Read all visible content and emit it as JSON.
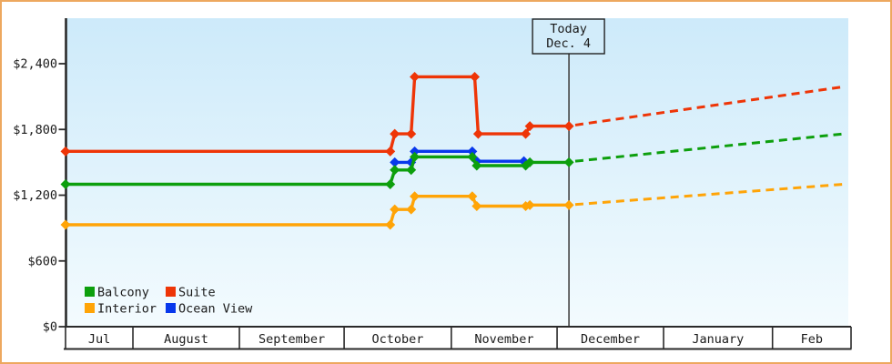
{
  "chart_data": {
    "type": "line",
    "description": "Cruise cabin price history by category with projected prices after today",
    "y_axis": {
      "tick_values": [
        0,
        600,
        1200,
        1800,
        2400
      ],
      "tick_labels": [
        "$0",
        "$600",
        "$1,200",
        "$1,800",
        "$2,400"
      ],
      "value_range": [
        0,
        2815
      ],
      "grid": "off"
    },
    "x_axis": {
      "unit": "days from chart start (mid-July)",
      "range": [
        0,
        225
      ],
      "months": [
        {
          "label": "Jul",
          "start": 0,
          "end": 19.3
        },
        {
          "label": "August",
          "start": 19.3,
          "end": 49.8
        },
        {
          "label": "September",
          "start": 49.8,
          "end": 79.8
        },
        {
          "label": "October",
          "start": 79.8,
          "end": 110.5
        },
        {
          "label": "November",
          "start": 110.5,
          "end": 140.8
        },
        {
          "label": "December",
          "start": 140.8,
          "end": 171.3
        },
        {
          "label": "January",
          "start": 171.3,
          "end": 202.5
        },
        {
          "label": "Feb",
          "start": 202.5,
          "end": 225
        }
      ]
    },
    "today": {
      "label_line1": "Today",
      "label_line2": "Dec. 4",
      "day": 144.2
    },
    "legend": {
      "position": "bottom-left inside plot",
      "rows": [
        [
          "Balcony",
          "Suite"
        ],
        [
          "Interior",
          "Ocean View"
        ]
      ]
    },
    "series": [
      {
        "name": "Interior",
        "color": "#ffa407",
        "points": [
          [
            0,
            930
          ],
          [
            93,
            930
          ],
          [
            94.3,
            1070
          ],
          [
            99,
            1070
          ],
          [
            100,
            1190
          ],
          [
            116.5,
            1190
          ],
          [
            117.8,
            1100
          ],
          [
            131.8,
            1100
          ],
          [
            133,
            1110
          ],
          [
            144.2,
            1110
          ]
        ],
        "projection": [
          [
            146,
            1115
          ],
          [
            223,
            1300
          ]
        ]
      },
      {
        "name": "Ocean View",
        "color": "#0838ec",
        "points": [
          [
            94.3,
            1500
          ],
          [
            99,
            1500
          ],
          [
            100,
            1600
          ],
          [
            116.5,
            1600
          ],
          [
            117.8,
            1510
          ],
          [
            131.3,
            1510
          ]
        ],
        "projection": null
      },
      {
        "name": "Balcony",
        "color": "#0d9f0d",
        "points": [
          [
            0,
            1300
          ],
          [
            93,
            1300
          ],
          [
            94.3,
            1430
          ],
          [
            99,
            1430
          ],
          [
            100,
            1550
          ],
          [
            116.5,
            1550
          ],
          [
            117.8,
            1470
          ],
          [
            131.8,
            1470
          ],
          [
            133,
            1500
          ],
          [
            144.2,
            1500
          ]
        ],
        "projection": [
          [
            146,
            1510
          ],
          [
            223,
            1760
          ]
        ]
      },
      {
        "name": "Suite",
        "color": "#ee3507",
        "points": [
          [
            0,
            1600
          ],
          [
            93,
            1600
          ],
          [
            94.3,
            1760
          ],
          [
            99,
            1760
          ],
          [
            100,
            2280
          ],
          [
            117.2,
            2280
          ],
          [
            118.2,
            1760
          ],
          [
            131.8,
            1760
          ],
          [
            133,
            1830
          ],
          [
            144.2,
            1830
          ]
        ],
        "projection": [
          [
            146,
            1840
          ],
          [
            223,
            2190
          ]
        ]
      }
    ],
    "colors": {
      "frame_border": "#eda85f",
      "plot_bg_top": "#cdeafa",
      "plot_bg_bottom": "#f3fbfe",
      "axis": "#2a2a2a",
      "today_line": "#444444",
      "today_box_fill": "#d2ecfa",
      "today_box_border": "#222222",
      "text": "#1a1a1a"
    }
  }
}
